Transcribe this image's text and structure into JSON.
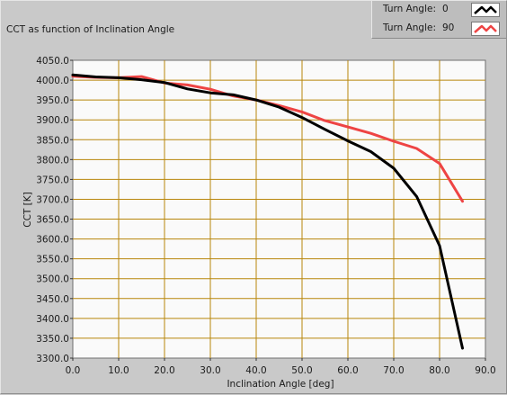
{
  "chart_data": {
    "type": "line",
    "title": "CCT as function of Inclination Angle",
    "xlabel": "Inclination Angle [deg]",
    "ylabel": "CCT [K]",
    "xlim": [
      0,
      90
    ],
    "ylim": [
      3300,
      4050
    ],
    "x_ticks": [
      "0.0",
      "10.0",
      "20.0",
      "30.0",
      "40.0",
      "50.0",
      "60.0",
      "70.0",
      "80.0",
      "90.0"
    ],
    "y_ticks": [
      "4050.0",
      "4000.0",
      "3950.0",
      "3900.0",
      "3850.0",
      "3800.0",
      "3750.0",
      "3700.0",
      "3650.0",
      "3600.0",
      "3550.0",
      "3500.0",
      "3450.0",
      "3400.0",
      "3350.0",
      "3300.0"
    ],
    "grid": true,
    "legend_position": "top-right",
    "colors": {
      "background": "#c9c9c9",
      "plot_area": "#fafafa",
      "grid": "#b8860b"
    },
    "series": [
      {
        "label": "Turn Angle:",
        "value": "0",
        "color": "#000000",
        "x": [
          0,
          5,
          10,
          15,
          20,
          25,
          30,
          35,
          40,
          45,
          50,
          55,
          60,
          65,
          70,
          75,
          80,
          85
        ],
        "y": [
          4013,
          4008,
          4006,
          4001,
          3994,
          3978,
          3968,
          3963,
          3950,
          3932,
          3906,
          3876,
          3847,
          3820,
          3778,
          3707,
          3583,
          3325
        ]
      },
      {
        "label": "Turn Angle:",
        "value": "90",
        "color": "#ee4444",
        "x": [
          0,
          5,
          10,
          15,
          20,
          25,
          30,
          35,
          40,
          45,
          50,
          55,
          60,
          65,
          70,
          75,
          80,
          85
        ],
        "y": [
          4010,
          4007,
          4006,
          4009,
          3993,
          3988,
          3977,
          3960,
          3950,
          3936,
          3920,
          3898,
          3882,
          3866,
          3846,
          3828,
          3790,
          3695
        ]
      }
    ]
  }
}
